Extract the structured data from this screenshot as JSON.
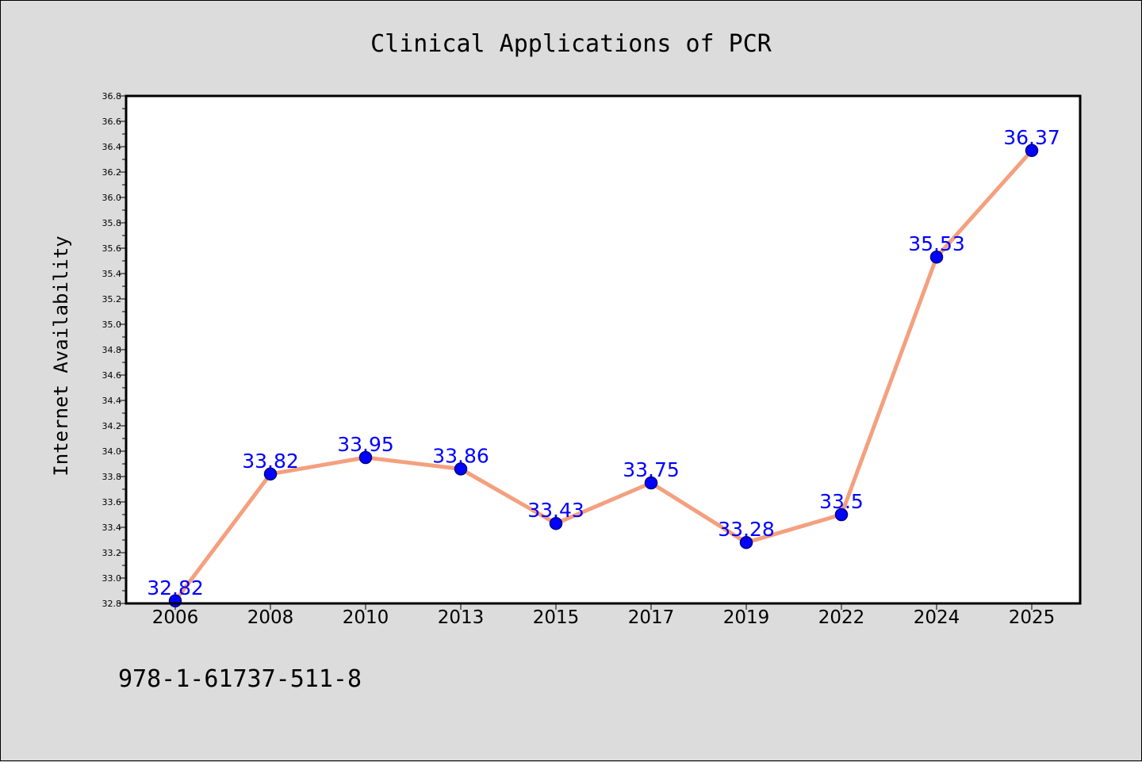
{
  "colors": {
    "background": "#dcdcdc",
    "plot_background": "#ffffff",
    "line": "#f4a07f",
    "marker": "#0000ff",
    "marker_edge": "#000080",
    "data_label": "#0000ff"
  },
  "footnote": "978-1-61737-511-8",
  "chart_data": {
    "type": "line",
    "title": "Clinical Applications of PCR",
    "xlabel": "",
    "ylabel": "Internet Availability",
    "categories": [
      "2006",
      "2008",
      "2010",
      "2013",
      "2015",
      "2017",
      "2019",
      "2022",
      "2024",
      "2025"
    ],
    "series": [
      {
        "values": [
          32.82,
          33.82,
          33.95,
          33.86,
          33.43,
          33.75,
          33.28,
          33.5,
          35.53,
          36.37
        ],
        "labels": [
          "32.82",
          "33.82",
          "33.95",
          "33.86",
          "33.43",
          "33.75",
          "33.28",
          "33.5",
          "35.53",
          "36.37"
        ]
      }
    ],
    "ylim": [
      32.8,
      36.8
    ],
    "yticks": [
      "32.8",
      "33.0",
      "33.2",
      "33.4",
      "33.6",
      "33.8",
      "34.0",
      "34.2",
      "34.4",
      "34.6",
      "34.8",
      "35.0",
      "35.2",
      "35.4",
      "35.6",
      "35.8",
      "36.0",
      "36.2",
      "36.4",
      "36.6",
      "36.8"
    ],
    "grid": false,
    "legend": "none"
  }
}
